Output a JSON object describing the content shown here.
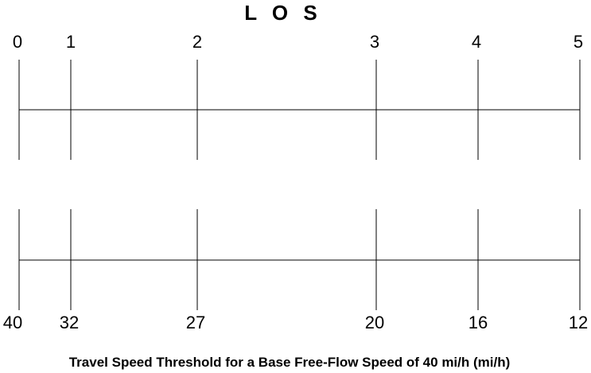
{
  "title": "L O S",
  "los_levels": [
    "0",
    "1",
    "2",
    "3",
    "4",
    "5"
  ],
  "speed_thresholds": [
    "40",
    "32",
    "27",
    "20",
    "16",
    "12"
  ],
  "caption": "Travel Speed Threshold for a Base Free-Flow Speed of 40 mi/h (mi/h)"
}
